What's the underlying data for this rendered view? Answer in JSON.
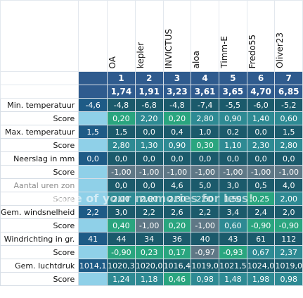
{
  "players": [
    "OA",
    "kepler",
    "INVICTUS",
    "aloa",
    "Timm-E",
    "Fredo55",
    "Oliver23"
  ],
  "ranks": [
    "1",
    "2",
    "3",
    "4",
    "5",
    "6",
    "7"
  ],
  "totals": [
    "1,74",
    "1,91",
    "3,23",
    "3,61",
    "3,65",
    "4,70",
    "6,85"
  ],
  "colors": {
    "header_blue": "#2f5b8e",
    "dark_teal": "#1b5a6b",
    "mid_teal": "#2e8a93",
    "green_good": "#2aa57f",
    "light_blue": "#8fd0e8",
    "grey_neutral": "#5f7886"
  },
  "rows": [
    {
      "label": "Min. temperatuur",
      "own": "-4,6",
      "values": [
        "-4,8",
        "-6,8",
        "-4,8",
        "-7,4",
        "-5,5",
        "-6,0",
        "-5,2"
      ]
    },
    {
      "label": "Score",
      "own": "",
      "values": [
        "0,20",
        "2,20",
        "0,20",
        "2,80",
        "0,90",
        "1,40",
        "0,60"
      ]
    },
    {
      "label": "Max. temperatuur",
      "own": "1,5",
      "values": [
        "1,5",
        "0,0",
        "0,4",
        "1,0",
        "0,2",
        "0,0",
        "1,5"
      ]
    },
    {
      "label": "Score",
      "own": "",
      "values": [
        "2,80",
        "1,30",
        "0,90",
        "0,30",
        "1,10",
        "2,30",
        "2,80"
      ]
    },
    {
      "label": "Neerslag in mm",
      "own": "0,0",
      "values": [
        "0,0",
        "0,0",
        "0,0",
        "0,0",
        "0,0",
        "0,0",
        "0,0"
      ]
    },
    {
      "label": "Score",
      "own": "",
      "values": [
        "-1,00",
        "-1,00",
        "-1,00",
        "-1,00",
        "-1,00",
        "-1,00",
        "-1,00"
      ]
    },
    {
      "label": "Aantal uren zon",
      "own": "",
      "values": [
        "0,0",
        "0,0",
        "4,6",
        "5,0",
        "3,0",
        "0,5",
        "4,0"
      ]
    },
    {
      "label": "Score",
      "own": "",
      "values": [
        "2,00",
        "2,00",
        "2,30",
        "2,50",
        "1,50",
        "0,25",
        "2,00"
      ]
    },
    {
      "label": "Gem. windsnelheid",
      "own": "2,2",
      "values": [
        "3,0",
        "2,2",
        "2,6",
        "2,2",
        "3,4",
        "2,4",
        "2,0"
      ]
    },
    {
      "label": "Score",
      "own": "",
      "values": [
        "0,40",
        "-1,00",
        "0,20",
        "-1,00",
        "0,60",
        "-0,90",
        "-0,90"
      ]
    },
    {
      "label": "Windrichting in gr.",
      "own": "41",
      "values": [
        "44",
        "34",
        "36",
        "40",
        "43",
        "61",
        "112"
      ]
    },
    {
      "label": "Score",
      "own": "",
      "values": [
        "-0,90",
        "0,23",
        "0,17",
        "-0,97",
        "-0,93",
        "0,67",
        "2,37"
      ]
    },
    {
      "label": "Gem. luchtdruk",
      "own": "1014,1",
      "values": [
        "1020,3",
        "1020,0",
        "1016,4",
        "1019,0",
        "1021,5",
        "1024,0",
        "1019,0"
      ]
    },
    {
      "label": "Score",
      "own": "",
      "values": [
        "1,24",
        "1,18",
        "0,46",
        "0,98",
        "1,48",
        "1,98",
        "0,98"
      ]
    }
  ],
  "watermark": "more of your memories for less!"
}
